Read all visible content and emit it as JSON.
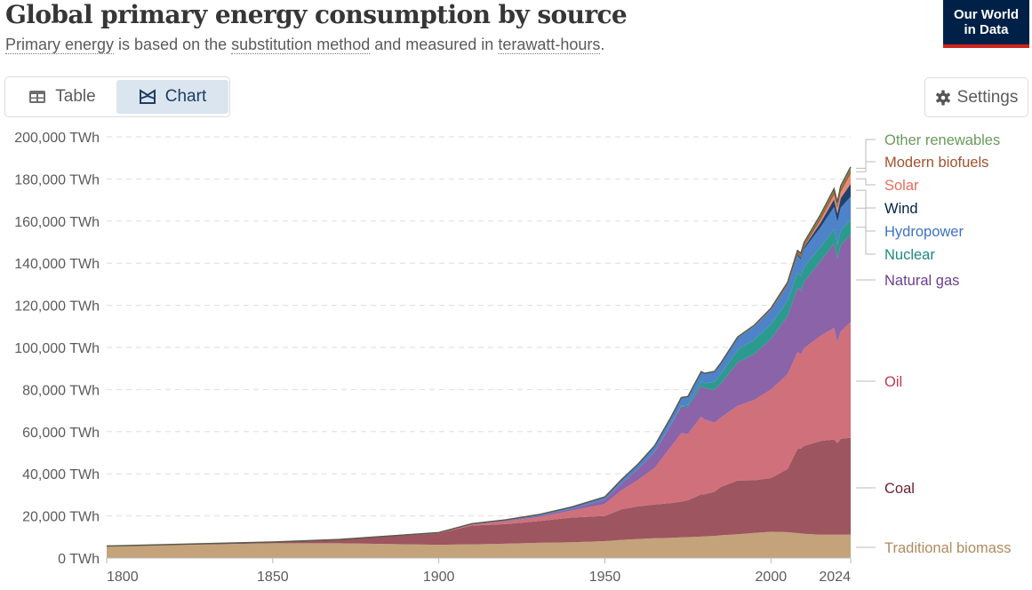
{
  "header": {
    "title": "Global primary energy consumption by source",
    "subtitle_parts": [
      {
        "text": "Primary energy",
        "dotted": true
      },
      {
        "text": " is based on the ",
        "dotted": false
      },
      {
        "text": "substitution method",
        "dotted": true
      },
      {
        "text": " and measured in ",
        "dotted": false
      },
      {
        "text": "terawatt-hours",
        "dotted": true
      },
      {
        "text": ".",
        "dotted": false
      }
    ],
    "logo_line1": "Our World",
    "logo_line2": "in Data"
  },
  "tabs": [
    {
      "label": "Table",
      "icon": "table-icon",
      "active": false
    },
    {
      "label": "Chart",
      "icon": "chart-icon",
      "active": true
    }
  ],
  "settings": {
    "label": "Settings",
    "icon": "gear-icon"
  },
  "chart_data": {
    "type": "area",
    "stacked": true,
    "title": "Global primary energy consumption by source",
    "subtitle": "Primary energy is based on the substitution method and measured in terawatt-hours.",
    "xlabel": "",
    "ylabel": "",
    "unit": "TWh",
    "xlim": [
      1800,
      2024
    ],
    "ylim": [
      0,
      200000
    ],
    "yticks": [
      0,
      20000,
      40000,
      60000,
      80000,
      100000,
      120000,
      140000,
      160000,
      180000,
      200000
    ],
    "ytick_labels": [
      "0 TWh",
      "20,000 TWh",
      "40,000 TWh",
      "60,000 TWh",
      "80,000 TWh",
      "100,000 TWh",
      "120,000 TWh",
      "140,000 TWh",
      "160,000 TWh",
      "180,000 TWh",
      "200,000 TWh"
    ],
    "xticks": [
      1800,
      1850,
      1900,
      1950,
      2000,
      2024
    ],
    "grid": "horizontal-dashed",
    "legend_placement": "right",
    "x": [
      1800,
      1850,
      1870,
      1900,
      1910,
      1920,
      1930,
      1940,
      1950,
      1955,
      1960,
      1965,
      1970,
      1973,
      1975,
      1979,
      1980,
      1983,
      1985,
      1990,
      1995,
      2000,
      2005,
      2008,
      2009,
      2010,
      2015,
      2019,
      2020,
      2021,
      2024
    ],
    "series": [
      {
        "name": "Traditional biomass",
        "color": "#c4a27a",
        "values": [
          5600,
          7000,
          7000,
          6300,
          6500,
          6800,
          7200,
          7500,
          8000,
          8600,
          9000,
          9400,
          9600,
          9800,
          9900,
          10200,
          10300,
          10500,
          10800,
          11300,
          11900,
          12500,
          12300,
          11800,
          11700,
          11500,
          11100,
          11100,
          11100,
          11100,
          11100
        ]
      },
      {
        "name": "Coal",
        "color": "#9d5560",
        "values": [
          100,
          600,
          1800,
          5400,
          8900,
          9300,
          10300,
          11700,
          12000,
          14500,
          15500,
          16000,
          16500,
          17000,
          17500,
          20000,
          20000,
          21000,
          23000,
          25500,
          25000,
          25500,
          30000,
          40000,
          40300,
          41700,
          44500,
          45200,
          43500,
          45500,
          46000
        ]
      },
      {
        "name": "Oil",
        "color": "#cf707b",
        "values": [
          0,
          0,
          0,
          200,
          500,
          1300,
          1900,
          3300,
          5700,
          9000,
          12600,
          17500,
          27000,
          32500,
          31500,
          37000,
          35500,
          32800,
          33000,
          35500,
          38200,
          42000,
          45000,
          46000,
          44800,
          46500,
          50000,
          53000,
          48000,
          51000,
          55000
        ]
      },
      {
        "name": "Natural gas",
        "color": "#8a63a9",
        "values": [
          0,
          0,
          0,
          100,
          200,
          300,
          600,
          800,
          2100,
          3300,
          5200,
          7600,
          10500,
          12600,
          12800,
          14600,
          14900,
          15500,
          16200,
          20600,
          21800,
          24000,
          27500,
          30500,
          30000,
          31500,
          35500,
          40000,
          39500,
          41000,
          41500
        ]
      },
      {
        "name": "Nuclear",
        "color": "#2d9a8f",
        "values": [
          0,
          0,
          0,
          0,
          0,
          0,
          0,
          0,
          0,
          0,
          10,
          70,
          220,
          500,
          1000,
          2100,
          2300,
          3800,
          4600,
          6000,
          6800,
          7000,
          7300,
          7200,
          7000,
          7300,
          6700,
          7000,
          6700,
          7000,
          7000
        ]
      },
      {
        "name": "Hydropower",
        "color": "#4e83c9",
        "values": [
          0,
          0,
          0,
          100,
          200,
          400,
          600,
          900,
          1200,
          1800,
          2300,
          2800,
          3400,
          3800,
          4000,
          4600,
          4700,
          5000,
          5200,
          5700,
          6300,
          6700,
          7200,
          8000,
          8100,
          8300,
          9400,
          10400,
          10800,
          10700,
          11000
        ]
      },
      {
        "name": "Wind",
        "color": "#21416d",
        "values": [
          0,
          0,
          0,
          0,
          0,
          0,
          0,
          0,
          0,
          0,
          0,
          0,
          0,
          0,
          0,
          0,
          0,
          0,
          0,
          10,
          20,
          80,
          260,
          550,
          700,
          900,
          2200,
          3600,
          4000,
          4600,
          6100
        ]
      },
      {
        "name": "Solar",
        "color": "#e88a74",
        "values": [
          0,
          0,
          0,
          0,
          0,
          0,
          0,
          0,
          0,
          0,
          0,
          0,
          0,
          0,
          0,
          0,
          0,
          0,
          0,
          1,
          3,
          5,
          15,
          55,
          90,
          150,
          1300,
          2100,
          2400,
          2800,
          4800
        ]
      },
      {
        "name": "Modern biofuels",
        "color": "#9f5e36",
        "values": [
          0,
          0,
          0,
          0,
          0,
          0,
          0,
          0,
          0,
          0,
          0,
          0,
          0,
          0,
          0,
          0,
          0,
          0,
          0,
          100,
          150,
          300,
          700,
          1200,
          1250,
          1300,
          1600,
          1800,
          1700,
          1750,
          1900
        ]
      },
      {
        "name": "Other renewables",
        "color": "#6a9a5b",
        "values": [
          0,
          0,
          0,
          0,
          0,
          0,
          0,
          0,
          0,
          0,
          0,
          0,
          0,
          0,
          0,
          0,
          0,
          0,
          0,
          300,
          400,
          500,
          600,
          700,
          750,
          800,
          1000,
          1150,
          1200,
          1250,
          1300
        ]
      }
    ],
    "legend_labels": [
      "Other renewables",
      "Modern biofuels",
      "Solar",
      "Wind",
      "Hydropower",
      "Nuclear",
      "Natural gas",
      "Oil",
      "Coal",
      "Traditional biomass"
    ]
  }
}
